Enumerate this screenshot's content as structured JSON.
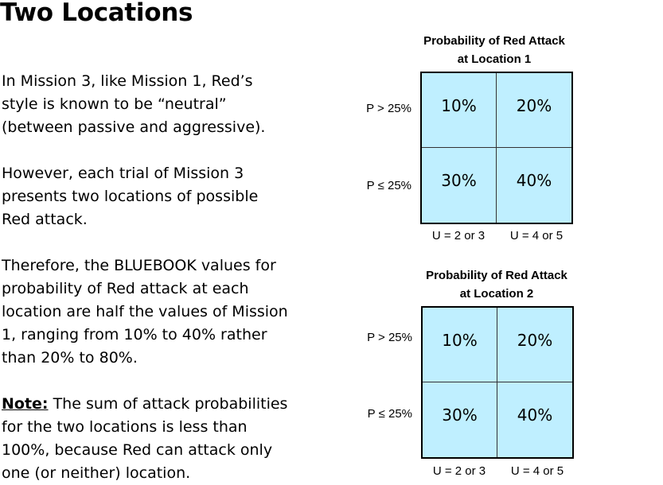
{
  "slide": {
    "title": "Two Locations",
    "paragraphs": [
      "In Mission 3, like Mission 1, Red’s\nstyle is known to be “neutral”\n(between passive and aggressive).",
      "However, each trial of Mission 3\npresents two locations of possible\nRed attack.",
      "Therefore, the BLUEBOOK values for\nprobability of Red attack at each\nlocation are half the values of Mission\n1, ranging from 10% to 40% rather\nthan 20% to 80%."
    ],
    "note_label": "Note:",
    "note_text": " The sum of attack probabilities\nfor the two locations is less than\n100%, because Red can attack only\none (or neither) location."
  },
  "tables": [
    {
      "title_line1": "Probability of Red Attack",
      "title_line2": "at Location 1",
      "row_labels": [
        "P > 25%",
        "P ≤ 25%"
      ],
      "col_labels": [
        "U = 2 or 3",
        "U = 4 or 5"
      ],
      "cells": [
        "10%",
        "20%",
        "30%",
        "40%"
      ],
      "cell_color": "#bfefff"
    },
    {
      "title_line1": "Probability of Red Attack",
      "title_line2": "at  Location 2",
      "row_labels": [
        "P > 25%",
        "P ≤ 25%"
      ],
      "col_labels": [
        "U = 2 or 3",
        "U = 4 or 5"
      ],
      "cells": [
        "10%",
        "20%",
        "30%",
        "40%"
      ],
      "cell_color": "#bfefff"
    }
  ]
}
